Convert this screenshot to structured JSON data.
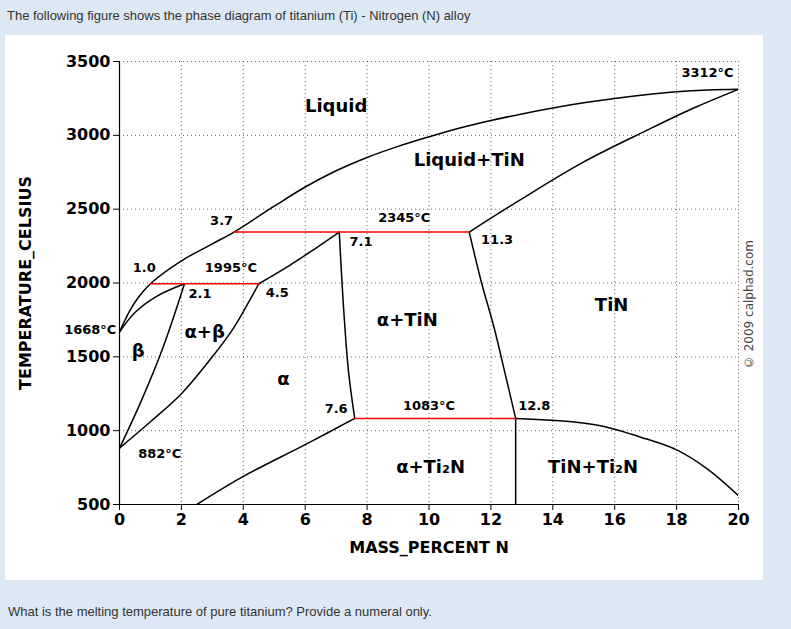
{
  "chart_data": {
    "type": "line",
    "title": "The following figure shows the phase diagram of titanium (Ti) - Nitrogen (N) alloy",
    "caption": "What is the melting temperature of pure titanium? Provide a numeral only.",
    "copyright": "© 2009 calphad.com",
    "x_label": "MASS_PERCENT N",
    "y_label": "TEMPERATURE_CELSIUS",
    "xlim": [
      0,
      20
    ],
    "xticks": [
      0,
      2,
      4,
      6,
      8,
      10,
      12,
      14,
      16,
      18,
      20
    ],
    "ylim": [
      500,
      3500
    ],
    "yticks": [
      500,
      1000,
      1500,
      2000,
      2500,
      3000,
      3500
    ],
    "grid": true,
    "series": [
      {
        "color": "#000000",
        "x": [
          0,
          0.3,
          0.6,
          1.0,
          2,
          3,
          3.7,
          5,
          6,
          7,
          8,
          9,
          10,
          11,
          12,
          13,
          14,
          15,
          16,
          17,
          18,
          19,
          20
        ],
        "values": [
          1668,
          1800,
          1900,
          1995,
          2150,
          2265,
          2345,
          2520,
          2650,
          2760,
          2850,
          2925,
          2990,
          3050,
          3100,
          3145,
          3185,
          3220,
          3250,
          3275,
          3295,
          3307,
          3312
        ]
      },
      {
        "color": "#000000",
        "x": [
          11.3,
          13,
          15,
          17,
          18.5,
          20
        ],
        "values": [
          2345,
          2570,
          2820,
          3030,
          3180,
          3312
        ]
      },
      {
        "color": "#000000",
        "x": [
          0,
          0.5,
          1.2,
          2.1
        ],
        "values": [
          1668,
          1800,
          1910,
          1995
        ]
      },
      {
        "color": "#000000",
        "x": [
          0,
          0.7,
          1.4,
          2.1
        ],
        "values": [
          882,
          1200,
          1560,
          1995
        ]
      },
      {
        "color": "#000000",
        "x": [
          0,
          1,
          2,
          3,
          3.7,
          4.2,
          4.5
        ],
        "values": [
          882,
          1060,
          1250,
          1500,
          1700,
          1880,
          1995
        ]
      },
      {
        "color": "#000000",
        "x": [
          4.5,
          5.5,
          6.3,
          7.1
        ],
        "values": [
          1995,
          2120,
          2230,
          2345
        ]
      },
      {
        "color": "#000000",
        "x": [
          7.1,
          7.25,
          7.4,
          7.6
        ],
        "values": [
          2345,
          1800,
          1400,
          1083
        ]
      },
      {
        "color": "#000000",
        "x": [
          11.3,
          11.7,
          12.1,
          12.5,
          12.8
        ],
        "values": [
          2345,
          2000,
          1700,
          1350,
          1083
        ]
      },
      {
        "color": "#000000",
        "x": [
          7.6,
          6,
          4,
          2.5
        ],
        "values": [
          1083,
          905,
          690,
          500
        ]
      },
      {
        "color": "#000000",
        "x": [
          12.8,
          12.8
        ],
        "values": [
          1083,
          500
        ]
      },
      {
        "color": "#000000",
        "x": [
          12.8,
          14,
          15.5,
          17,
          18,
          19,
          20
        ],
        "values": [
          1083,
          1070,
          1035,
          945,
          870,
          740,
          560
        ]
      },
      {
        "color": "#ff0000",
        "x": [
          1.0,
          4.5
        ],
        "values": [
          1995,
          1995
        ]
      },
      {
        "color": "#ff0000",
        "x": [
          3.7,
          11.3
        ],
        "values": [
          2345,
          2345
        ]
      },
      {
        "color": "#ff0000",
        "x": [
          7.6,
          12.8
        ],
        "values": [
          1083,
          1083
        ]
      }
    ],
    "annotations": [
      {
        "text": "Liquid",
        "x": 7.0,
        "y": 3200
      },
      {
        "text": "Liquid+TiN",
        "x": 11.3,
        "y": 2830
      },
      {
        "text": "3312°C",
        "x": 19.0,
        "y": 3425
      },
      {
        "text": "2345°C",
        "x": 9.2,
        "y": 2440
      },
      {
        "text": "3.7",
        "x": 3.3,
        "y": 2420
      },
      {
        "text": "7.1",
        "x": 7.8,
        "y": 2280
      },
      {
        "text": "11.3",
        "x": 12.2,
        "y": 2290
      },
      {
        "text": "1.0",
        "x": 0.8,
        "y": 2100
      },
      {
        "text": "1995°C",
        "x": 3.6,
        "y": 2100
      },
      {
        "text": "2.1",
        "x": 2.6,
        "y": 1925
      },
      {
        "text": "4.5",
        "x": 5.1,
        "y": 1935
      },
      {
        "text": "1668°C",
        "x": -0.1,
        "y": 1680
      },
      {
        "text": "β",
        "x": 0.6,
        "y": 1540
      },
      {
        "text": "α+β",
        "x": 2.75,
        "y": 1665
      },
      {
        "text": "α",
        "x": 5.3,
        "y": 1350
      },
      {
        "text": "α+TiN",
        "x": 9.3,
        "y": 1745
      },
      {
        "text": "TiN",
        "x": 15.9,
        "y": 1850
      },
      {
        "text": "7.6",
        "x": 7.0,
        "y": 1150
      },
      {
        "text": "1083°C",
        "x": 10.0,
        "y": 1170
      },
      {
        "text": "12.8",
        "x": 13.4,
        "y": 1170
      },
      {
        "text": "882°C",
        "x": 1.3,
        "y": 840
      },
      {
        "text": "α+Ti₂N",
        "x": 10.05,
        "y": 750
      },
      {
        "text": "TiN+Ti₂N",
        "x": 15.3,
        "y": 750
      }
    ]
  }
}
